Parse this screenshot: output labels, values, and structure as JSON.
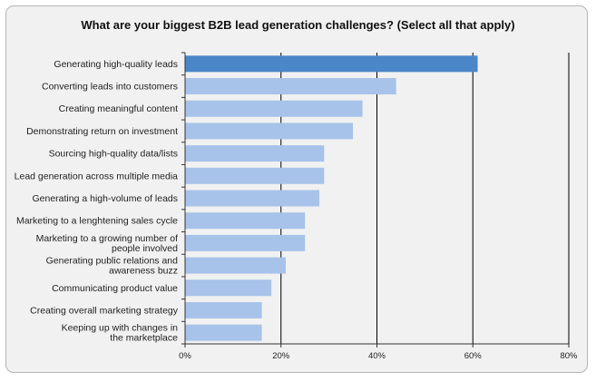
{
  "chart_data": {
    "type": "bar",
    "orientation": "horizontal",
    "title": "What are your biggest B2B lead generation challenges? (Select all that apply)",
    "xlabel": "",
    "ylabel": "",
    "xlim": [
      0,
      80
    ],
    "x_ticks": [
      "0%",
      "20%",
      "40%",
      "60%",
      "80%"
    ],
    "grid": "vertical",
    "categories": [
      "Generating high-quality leads",
      "Converting leads into customers",
      "Creating meaningful content",
      "Demonstrating return on investment",
      "Sourcing high-quality data/lists",
      "Lead generation across multiple media",
      "Generating a high-volume of leads",
      "Marketing to a lenghtening sales cycle",
      "Marketing to a growing number of people involved",
      "Generating public relations and awareness buzz",
      "Communicating product value",
      "Creating overall marketing strategy",
      "Keeping up with changes in the marketplace"
    ],
    "category_lines": [
      [
        "Generating high-quality leads"
      ],
      [
        "Converting leads into customers"
      ],
      [
        "Creating meaningful content"
      ],
      [
        "Demonstrating return on investment"
      ],
      [
        "Sourcing high-quality data/lists"
      ],
      [
        "Lead generation across multiple media"
      ],
      [
        "Generating a high-volume of leads"
      ],
      [
        "Marketing to a lenghtening sales cycle"
      ],
      [
        "Marketing to a growing number of",
        "people involved"
      ],
      [
        "Generating public relations and",
        "awareness buzz"
      ],
      [
        "Communicating product value"
      ],
      [
        "Creating overall marketing strategy"
      ],
      [
        "Keeping up with changes in",
        "the marketplace"
      ]
    ],
    "values": [
      61,
      44,
      37,
      35,
      29,
      29,
      28,
      25,
      25,
      21,
      18,
      16,
      16
    ],
    "colors": {
      "highlight": "#4a86c8",
      "default": "#a7c3e9",
      "grid": "#000000",
      "background": "#f1f1f1"
    }
  }
}
